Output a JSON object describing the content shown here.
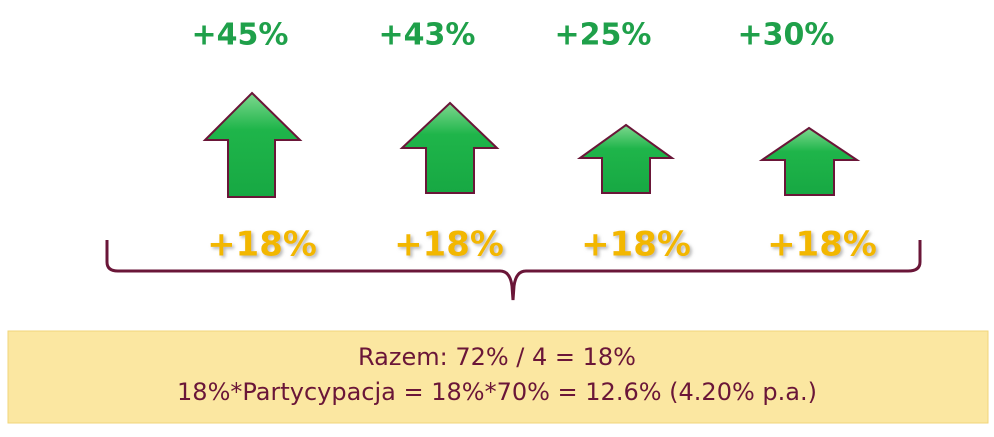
{
  "top_labels": [
    "+45%",
    "+43%",
    "+25%",
    "+30%"
  ],
  "bottom_labels": [
    "+18%",
    "+18%",
    "+18%",
    "+18%"
  ],
  "summary": {
    "lines": [
      "Razem: 72% / 4 = 18%",
      "18%*Partycypacja = 18%*70% = 12.6% (4.20% p.a.)"
    ]
  }
}
